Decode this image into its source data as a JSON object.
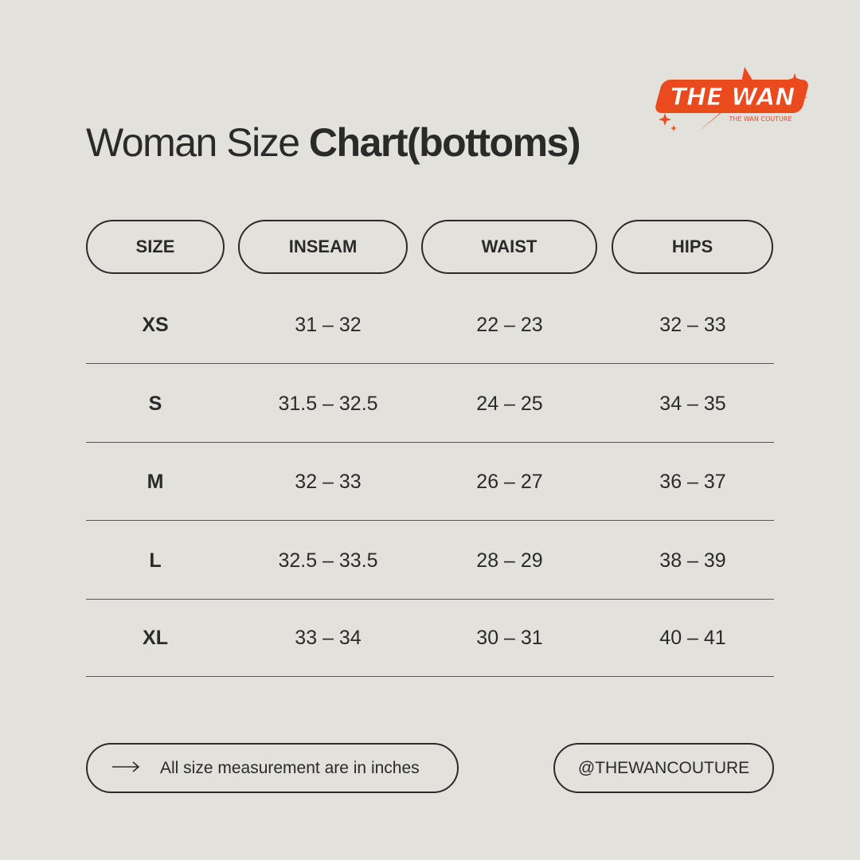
{
  "logo": {
    "text": "THE WAN",
    "subtext": "THE WAN COUTURE",
    "color": "#ea4a1e"
  },
  "title": {
    "regular": "Woman Size ",
    "bold": "Chart(bottoms)"
  },
  "columns": [
    "SIZE",
    "INSEAM",
    "WAIST",
    "HIPS"
  ],
  "rows": [
    {
      "size": "XS",
      "inseam": "31 – 32",
      "waist": "22 – 23",
      "hips": "32 – 33"
    },
    {
      "size": "S",
      "inseam": "31.5 – 32.5",
      "waist": "24 – 25",
      "hips": "34 – 35"
    },
    {
      "size": "M",
      "inseam": "32 – 33",
      "waist": "26 – 27",
      "hips": "36 – 37"
    },
    {
      "size": "L",
      "inseam": "32.5 – 33.5",
      "waist": "28 – 29",
      "hips": "38 – 39"
    },
    {
      "size": "XL",
      "inseam": "33 – 34",
      "waist": "30 – 31",
      "hips": "40 – 41"
    }
  ],
  "footer": {
    "note_icon": "arrow-right-icon",
    "note": "All size measurement are in inches",
    "handle": "@THEWANCOUTURE"
  }
}
